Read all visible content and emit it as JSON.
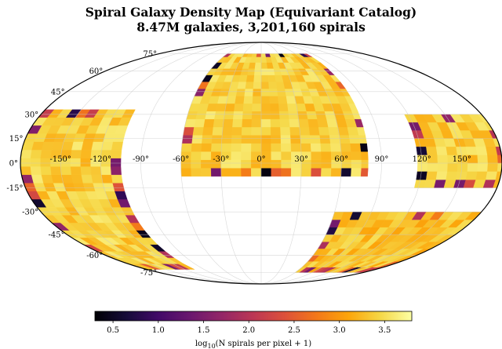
{
  "chart_data": {
    "type": "heatmap",
    "projection": "mollweide",
    "title": "Spiral Galaxy Density Map (Equivariant Catalog)",
    "subtitle": "8.47M galaxies, 3,201,160 spirals",
    "longitude_tick_labels": [
      "-150°",
      "-120°",
      "-90°",
      "-60°",
      "-30°",
      "0°",
      "30°",
      "60°",
      "90°",
      "120°",
      "150°"
    ],
    "latitude_tick_labels": [
      "75°",
      "60°",
      "45°",
      "30°",
      "15°",
      "0°",
      "-15°",
      "-30°",
      "-45°",
      "-60°",
      "-75°"
    ],
    "grid": true,
    "colormap": "inferno",
    "colorbar": {
      "label_prefix": "log",
      "label_sub": "10",
      "label_suffix": "(N spirals per pixel + 1)",
      "range": [
        0.3,
        3.8
      ],
      "ticks": [
        "0.5",
        "1.0",
        "1.5",
        "2.0",
        "2.5",
        "3.0",
        "3.5"
      ],
      "orientation": "horizontal",
      "placement": "bottom"
    },
    "coverage_regions": [
      {
        "name": "north-cap",
        "lon": [
          -60,
          80
        ],
        "lat": [
          -8,
          75
        ],
        "typical_value": 3.4
      },
      {
        "name": "west-patch",
        "lon": [
          -180,
          -105
        ],
        "lat": [
          -72,
          33
        ],
        "typical_value": 3.4
      },
      {
        "name": "east-patch",
        "lon": [
          117,
          180
        ],
        "lat": [
          -15,
          30
        ],
        "typical_value": 3.4
      },
      {
        "name": "southeast-strip",
        "lon": [
          60,
          180
        ],
        "lat": [
          -75,
          -30
        ],
        "typical_value": 3.3
      }
    ]
  }
}
